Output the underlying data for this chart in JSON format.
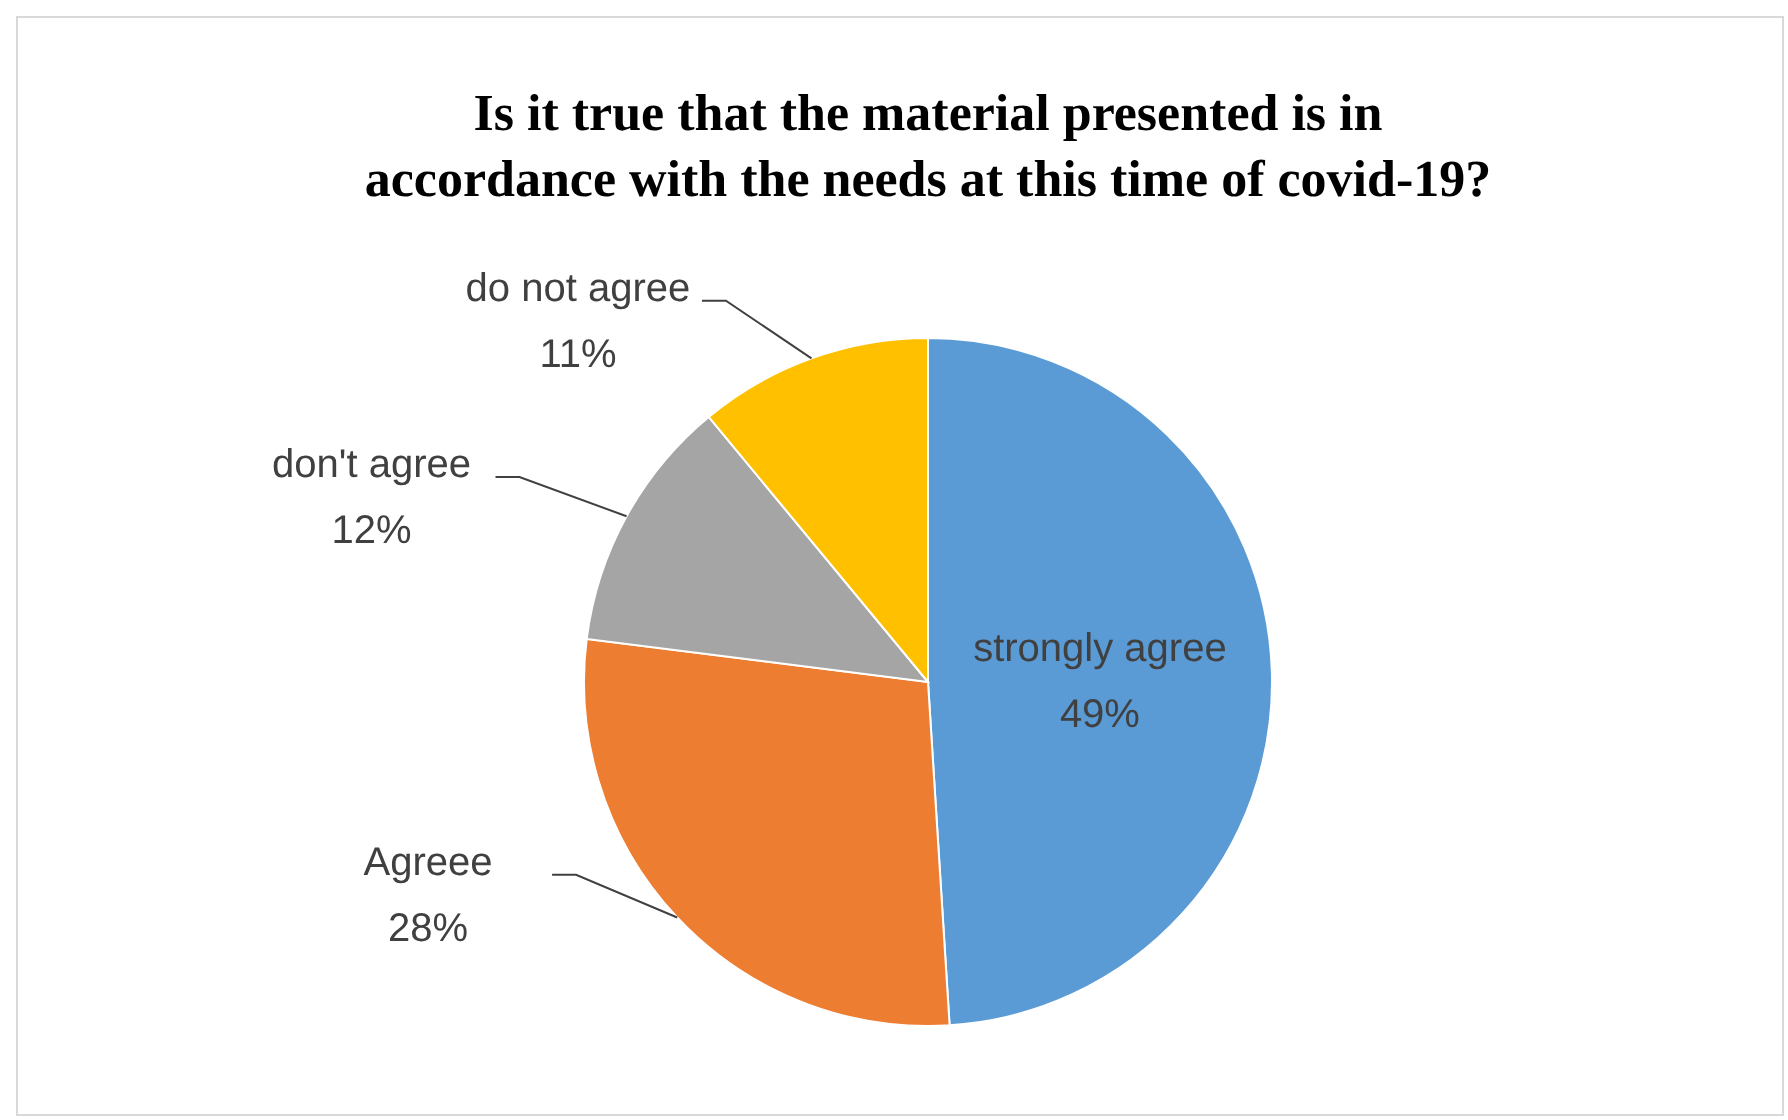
{
  "chart_data": {
    "type": "pie",
    "title": "Is it true that the material presented is in accordance with the needs at this time of covid-19?",
    "categories": [
      "strongly agree",
      "Agreee",
      "don't agree",
      "do not agree"
    ],
    "values": [
      49,
      28,
      12,
      11
    ],
    "colors": [
      "#5b9bd5",
      "#ed7d31",
      "#a5a5a5",
      "#ffc000"
    ],
    "value_labels": [
      "49%",
      "28%",
      "12%",
      "11%"
    ]
  }
}
